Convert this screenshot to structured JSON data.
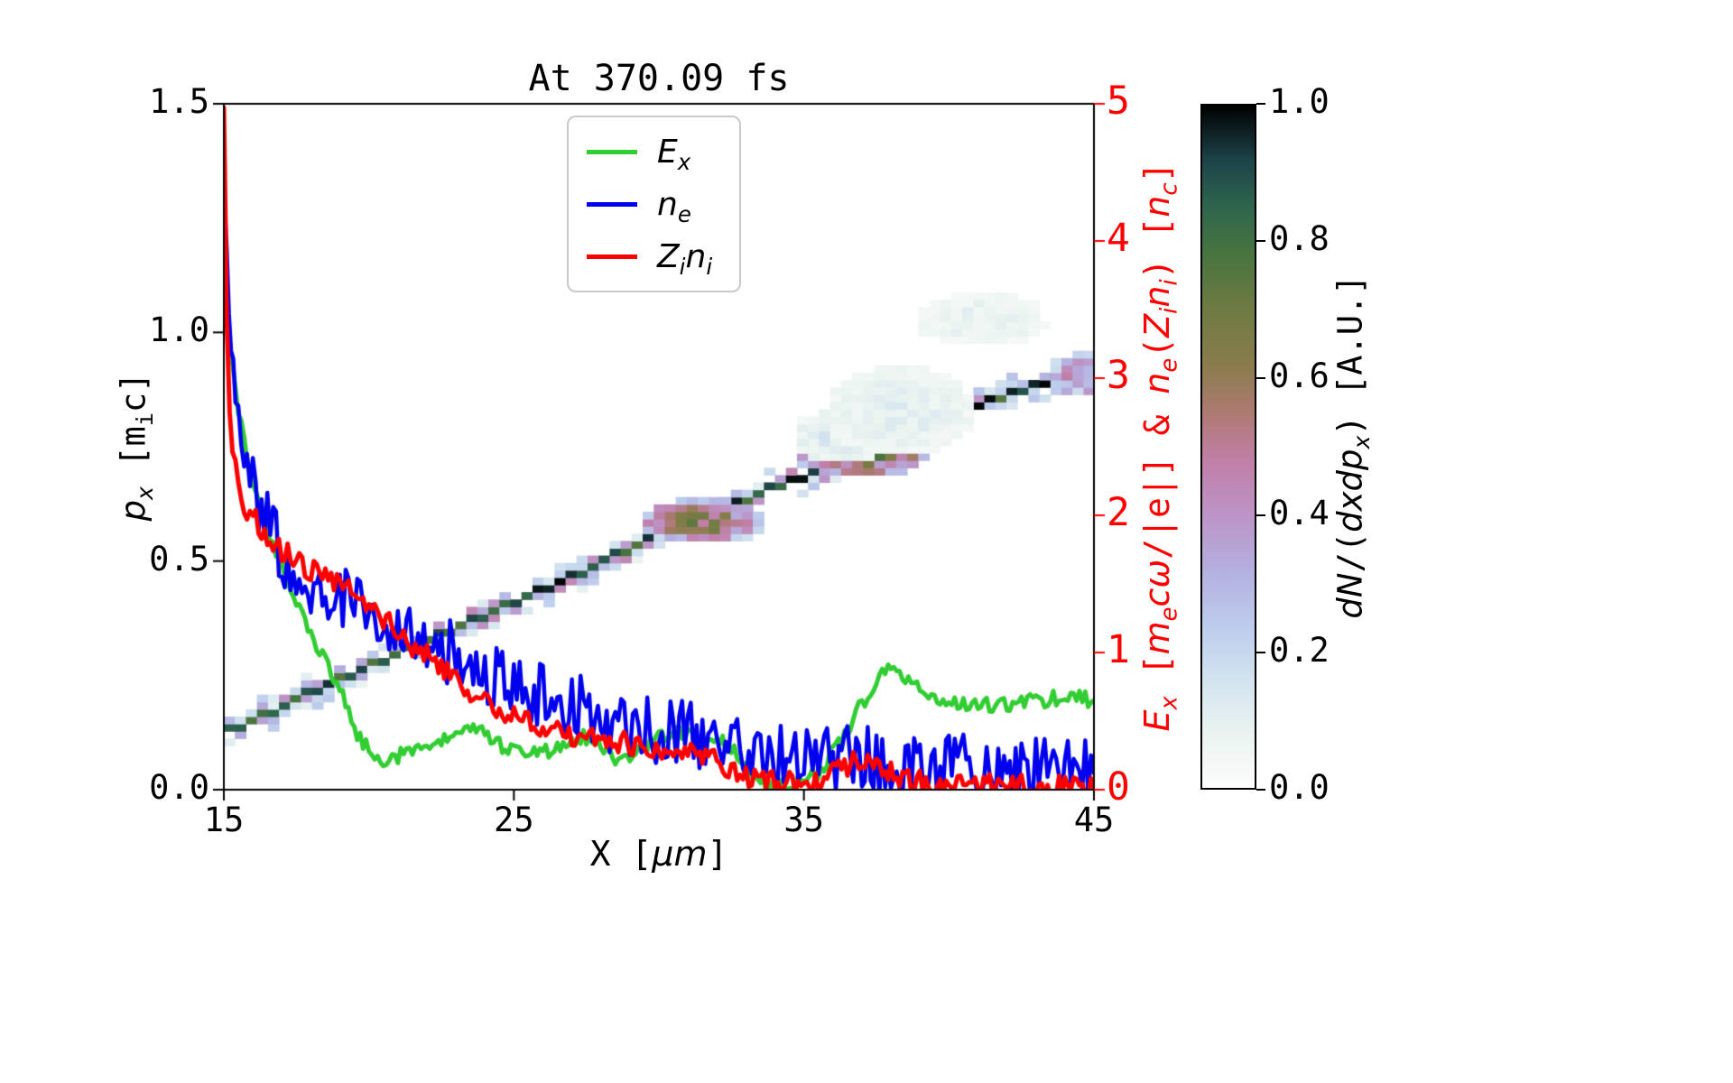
{
  "title": "At 370.09 fs",
  "labels_html": {
    "xlabel": "X [<i>μm</i>]",
    "ylabel_left": "<i>p<sub>x</sub></i> [m<sub>i</sub>c]",
    "ylabel_right": "<i>E<sub>x</sub></i> [<i>m<sub>e</sub>cω</i>/|e|] & <i>n<sub>e</sub></i>(<i>Z<sub>i</sub>n<sub>i</sub></i>) [<i>n<sub>c</sub></i>]",
    "colorbar": "<i>dN</i>/(<i>dxdp<sub>x</sub></i>) [A.U.]"
  },
  "legend": {
    "position": "upper center",
    "entries": [
      {
        "key": "ex",
        "label_html": "<i>E<sub>x</sub></i>",
        "color": "#32cd32"
      },
      {
        "key": "ne",
        "label_html": "<i>n<sub>e</sub></i>",
        "color": "#0000ee"
      },
      {
        "key": "zini",
        "label_html": "<i>Z<sub>i</sub>n<sub>i</sub></i>",
        "color": "#ff0000"
      }
    ]
  },
  "chart_data": {
    "type": "composite",
    "subtypes": [
      "heatmap",
      "line"
    ],
    "title": "At 370.09 fs",
    "xlabel": "X [μm]",
    "ylabel_left": "p_x [m_i c]",
    "ylabel_right": "E_x [m_e c ω/|e|] & n_e(Z_i n_i) [n_c]",
    "x_range": [
      15,
      45
    ],
    "y_left_range": [
      0,
      1.5
    ],
    "y_right_range": [
      0,
      5
    ],
    "grid": false,
    "x_ticks": {
      "values": [
        15,
        25,
        35,
        45
      ],
      "labels": [
        "15",
        "25",
        "35",
        "45"
      ]
    },
    "y_left_ticks": {
      "values": [
        0,
        0.5,
        1.0,
        1.5
      ],
      "labels": [
        "0.0",
        "0.5",
        "1.0",
        "1.5"
      ],
      "color": "#000000"
    },
    "y_right_ticks": {
      "values": [
        0,
        1,
        2,
        3,
        4,
        5
      ],
      "labels": [
        "0",
        "1",
        "2",
        "3",
        "4",
        "5"
      ],
      "color": "#ff0000"
    },
    "series": [
      {
        "name": "E_x",
        "axis": "right",
        "color": "#32cd32",
        "width": 5,
        "noise": 0.012,
        "x": [
          15,
          15.2,
          15.5,
          15.8,
          16.2,
          16.6,
          17,
          17.5,
          18,
          18.5,
          19,
          19.5,
          20,
          20.5,
          21,
          21.5,
          22,
          22.5,
          23,
          23.5,
          24,
          24.5,
          25,
          25.5,
          26,
          26.5,
          27,
          27.5,
          28,
          28.5,
          29,
          29.5,
          30,
          30.5,
          31,
          31.5,
          32,
          32.5,
          33,
          33.5,
          34,
          34.5,
          35,
          35.5,
          36,
          36.5,
          37,
          37.5,
          37.9,
          38.3,
          38.8,
          39.3,
          40,
          40.8,
          41.6,
          42.4,
          43.2,
          44,
          44.6,
          45
        ],
        "y": [
          3.65,
          3.2,
          2.75,
          2.4,
          2.1,
          1.85,
          1.62,
          1.38,
          1.15,
          0.95,
          0.72,
          0.45,
          0.28,
          0.22,
          0.25,
          0.3,
          0.33,
          0.35,
          0.38,
          0.42,
          0.4,
          0.33,
          0.3,
          0.3,
          0.27,
          0.3,
          0.36,
          0.38,
          0.3,
          0.22,
          0.2,
          0.3,
          0.4,
          0.42,
          0.38,
          0.36,
          0.38,
          0.3,
          0.15,
          0.05,
          0,
          0.03,
          0.07,
          0.12,
          0.28,
          0.45,
          0.62,
          0.82,
          0.93,
          0.88,
          0.75,
          0.68,
          0.63,
          0.6,
          0.62,
          0.64,
          0.66,
          0.67,
          0.66,
          0.65
        ]
      },
      {
        "name": "n_e",
        "axis": "right",
        "color": "#0000ee",
        "width": 4.5,
        "noise": 0.05,
        "x": [
          15,
          15.1,
          15.25,
          15.4,
          15.6,
          15.8,
          16,
          16.3,
          16.6,
          17,
          17.5,
          18,
          18.5,
          19,
          19.5,
          20,
          20.5,
          21,
          21.5,
          22,
          22.5,
          23,
          23.5,
          24,
          24.5,
          25,
          25.5,
          26,
          26.5,
          27,
          27.5,
          28,
          28.5,
          29,
          29.5,
          30,
          30.5,
          31,
          31.5,
          32,
          32.5,
          33,
          33.5,
          34,
          34.5,
          35,
          35.5,
          36,
          36.5,
          37,
          37.5,
          38,
          38.5,
          39,
          39.5,
          40,
          40.5,
          41,
          41.5,
          42,
          42.5,
          43,
          43.5,
          44,
          44.5,
          45
        ],
        "y": [
          4.5,
          3.9,
          3.4,
          3,
          2.7,
          2.45,
          2.25,
          2.05,
          1.9,
          1.75,
          1.6,
          1.52,
          1.47,
          1.42,
          1.36,
          1.3,
          1.24,
          1.18,
          1.13,
          1.08,
          1.03,
          0.98,
          0.93,
          0.88,
          0.85,
          0.8,
          0.76,
          0.7,
          0.65,
          0.6,
          0.57,
          0.54,
          0.51,
          0.49,
          0.46,
          0.44,
          0.42,
          0.41,
          0.4,
          0.4,
          0.36,
          0.33,
          0.3,
          0.28,
          0.27,
          0.26,
          0.25,
          0.25,
          0.24,
          0.23,
          0.21,
          0.2,
          0.19,
          0.18,
          0.17,
          0.17,
          0.16,
          0.15,
          0.15,
          0.14,
          0.14,
          0.13,
          0.13,
          0.12,
          0.12,
          0.12
        ]
      },
      {
        "name": "Z_i n_i",
        "axis": "right",
        "color": "#ff0000",
        "width": 5,
        "noise": 0.018,
        "x": [
          15,
          15.05,
          15.1,
          15.2,
          15.3,
          15.5,
          15.8,
          16.1,
          16.5,
          17,
          17.5,
          18,
          18.4,
          18.8,
          19.2,
          19.6,
          20,
          20.5,
          21,
          21.5,
          22,
          22.5,
          23,
          23.5,
          24,
          24.5,
          25,
          25.5,
          26,
          26.5,
          27,
          27.5,
          28,
          28.5,
          29,
          29.5,
          30,
          30.5,
          31,
          31.5,
          32,
          32.5,
          33,
          33.5,
          34,
          34.5,
          35,
          35.5,
          36,
          36.5,
          37,
          37.5,
          38,
          38.5,
          39,
          39.5,
          40,
          41,
          42,
          43,
          44,
          45
        ],
        "y": [
          5,
          4.2,
          3.4,
          2.8,
          2.45,
          2.2,
          2.05,
          1.95,
          1.85,
          1.74,
          1.65,
          1.6,
          1.57,
          1.52,
          1.46,
          1.4,
          1.33,
          1.24,
          1.14,
          1.05,
          0.97,
          0.89,
          0.81,
          0.73,
          0.66,
          0.59,
          0.53,
          0.5,
          0.48,
          0.44,
          0.41,
          0.39,
          0.37,
          0.35,
          0.33,
          0.32,
          0.31,
          0.29,
          0.28,
          0.25,
          0.21,
          0.16,
          0.11,
          0.07,
          0.05,
          0.04,
          0.05,
          0.08,
          0.13,
          0.19,
          0.22,
          0.19,
          0.13,
          0.08,
          0.05,
          0.04,
          0.04,
          0.03,
          0.03,
          0.02,
          0.02,
          0.02
        ]
      }
    ],
    "heatmap": {
      "axis": "left",
      "quantity": "dN/(dx dp_x) [A.U.]",
      "value_range": [
        0,
        1
      ],
      "cell": [
        0.38,
        0.016
      ],
      "band": [
        [
          15,
          0.115
        ],
        [
          17,
          0.175
        ],
        [
          19,
          0.235
        ],
        [
          21,
          0.29
        ],
        [
          23,
          0.35
        ],
        [
          25,
          0.405
        ],
        [
          27,
          0.46
        ],
        [
          29,
          0.52
        ],
        [
          30.5,
          0.565
        ],
        [
          32,
          0.6
        ],
        [
          33.5,
          0.645
        ],
        [
          35,
          0.675
        ],
        [
          36.5,
          0.71
        ],
        [
          38,
          0.755
        ],
        [
          39.5,
          0.79
        ],
        [
          41,
          0.835
        ],
        [
          42.5,
          0.865
        ],
        [
          44,
          0.9
        ],
        [
          45,
          0.915
        ]
      ],
      "band_intensity": [
        0.75,
        1.0
      ],
      "fringe_intensity": [
        0.1,
        0.45
      ],
      "blobs": [
        {
          "x": 31.2,
          "p": 0.585,
          "w": 2.2,
          "h": 0.05,
          "i": 0.78
        },
        {
          "x": 36.9,
          "p": 0.725,
          "w": 2.4,
          "h": 0.06,
          "i": 0.85
        },
        {
          "x": 35.9,
          "p": 0.77,
          "w": 1.6,
          "h": 0.06,
          "i": 0.18
        },
        {
          "x": 38.3,
          "p": 0.82,
          "w": 2.6,
          "h": 0.1,
          "i": 0.14
        },
        {
          "x": 41.0,
          "p": 1.02,
          "w": 2.4,
          "h": 0.06,
          "i": 0.12
        },
        {
          "x": 44.6,
          "p": 0.9,
          "w": 1.4,
          "h": 0.05,
          "i": 0.55
        }
      ],
      "colormap_stops": [
        [
          0.0,
          "#fcfdfc"
        ],
        [
          0.08,
          "#eaf3f0"
        ],
        [
          0.16,
          "#d2e3ef"
        ],
        [
          0.24,
          "#bccbec"
        ],
        [
          0.32,
          "#b4afdf"
        ],
        [
          0.4,
          "#bd93c6"
        ],
        [
          0.48,
          "#c07fa6"
        ],
        [
          0.55,
          "#ad7a72"
        ],
        [
          0.62,
          "#8a7c4c"
        ],
        [
          0.7,
          "#6f7b43"
        ],
        [
          0.78,
          "#49743f"
        ],
        [
          0.85,
          "#2f654d"
        ],
        [
          0.92,
          "#1d4349"
        ],
        [
          1.0,
          "#000000"
        ]
      ]
    },
    "colorbar": {
      "label": "dN/(dxdp_x) [A.U.]",
      "tick_values": [
        1.0,
        0.8,
        0.6,
        0.4,
        0.2,
        0.0
      ],
      "tick_labels": [
        "1.0",
        "0.8",
        "0.6",
        "0.4",
        "0.2",
        "0.0"
      ]
    }
  }
}
